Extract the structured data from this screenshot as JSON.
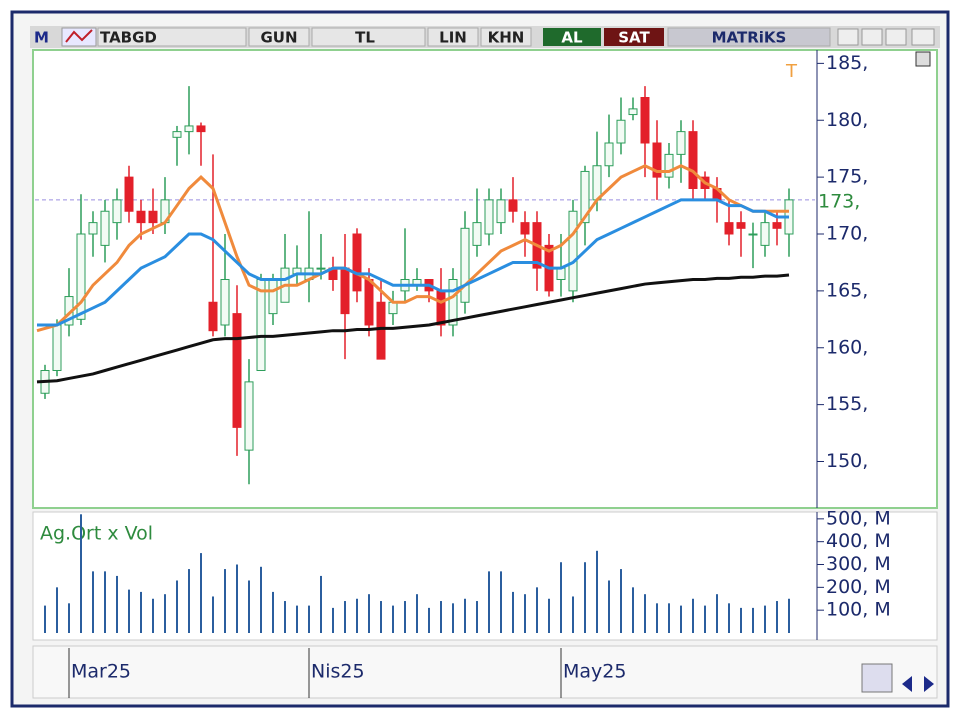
{
  "toolbar": {
    "logo": "M",
    "symbol": "TABGD",
    "period": "GUN",
    "currency": "TL",
    "scale": "LIN",
    "mode": "KHN",
    "buy": "AL",
    "sell": "SAT",
    "brand": "MATRiKS"
  },
  "chart_data": [
    {
      "type": "candlestick",
      "corner_label": "T",
      "categories": [
        null,
        null,
        "Mar25",
        null,
        null,
        null,
        null,
        null,
        null,
        null,
        null,
        null,
        null,
        null,
        null,
        null,
        null,
        null,
        null,
        null,
        null,
        null,
        "Nis25",
        null,
        null,
        null,
        null,
        null,
        null,
        null,
        null,
        null,
        null,
        null,
        null,
        null,
        null,
        null,
        null,
        null,
        null,
        null,
        null,
        "May25",
        null,
        null,
        null,
        null,
        null,
        null,
        null,
        null,
        null,
        null,
        null,
        null,
        null,
        null,
        null,
        null,
        null,
        null,
        null
      ],
      "open": [
        156,
        158,
        162,
        162.5,
        170,
        169,
        171,
        175,
        172,
        172,
        171,
        178.5,
        179,
        179.5,
        164,
        162,
        163,
        151,
        158,
        163,
        164,
        166.5,
        166,
        167,
        167,
        167,
        170,
        166,
        164,
        163,
        165,
        165.5,
        166,
        165,
        162,
        164,
        169,
        170,
        171,
        173,
        171,
        171,
        169,
        166,
        165,
        171,
        173,
        176,
        178,
        180.5,
        182,
        178,
        175,
        177,
        179,
        175,
        174,
        171,
        171,
        170,
        169,
        171,
        170
      ],
      "high": [
        158.5,
        162.5,
        167,
        173.5,
        172,
        173,
        174,
        176,
        173,
        174,
        175,
        179.5,
        183,
        179.8,
        177,
        170,
        165.5,
        159,
        166.5,
        166.5,
        170,
        169,
        172,
        170,
        168,
        170,
        170.5,
        167,
        166,
        165,
        170.5,
        167,
        166,
        167,
        167,
        172,
        174,
        174,
        174,
        175,
        172,
        172,
        170,
        170,
        173,
        176,
        179,
        180.5,
        182,
        182,
        183,
        180,
        178,
        180,
        180,
        175.5,
        175,
        173,
        172,
        171,
        172,
        172,
        174
      ],
      "low": [
        155.5,
        157.5,
        161,
        162,
        168,
        167.5,
        169.5,
        171,
        169.5,
        170,
        170,
        176,
        177,
        176,
        161,
        161,
        150.5,
        148,
        158,
        162,
        164,
        165.5,
        164,
        166,
        165,
        159,
        164,
        161,
        159,
        162,
        164,
        165,
        164,
        161,
        161,
        163,
        168,
        169,
        170,
        171,
        168,
        165,
        164.5,
        164.5,
        164,
        169,
        172,
        175,
        177,
        180,
        175,
        173,
        174,
        174.5,
        173,
        173,
        171,
        169,
        168,
        167,
        168,
        169,
        168
      ],
      "close": [
        158,
        162,
        164.5,
        170,
        171,
        172,
        173,
        172,
        171,
        171,
        173,
        179,
        179.5,
        179,
        161.5,
        166,
        153,
        157,
        166,
        166,
        167,
        167,
        167,
        167,
        166,
        163,
        165,
        162,
        159,
        164,
        166,
        166,
        165,
        162,
        166,
        170.5,
        171,
        173,
        173,
        172,
        170,
        167,
        165,
        167,
        172,
        175.5,
        176,
        178,
        180,
        181,
        178,
        175,
        177,
        179,
        174,
        174,
        173,
        170,
        170.5,
        170,
        171,
        170.5,
        173
      ],
      "up_color": "#2e9e5b",
      "down_color": "#e3202a",
      "lines": [
        {
          "color": "#f08a3c",
          "values": [
            161.5,
            162,
            163,
            164,
            165.5,
            166.5,
            167.5,
            169,
            170,
            170.5,
            171,
            172.5,
            174,
            175,
            174,
            171,
            168,
            165.5,
            165,
            165,
            165.5,
            165.5,
            166,
            166.5,
            167,
            167,
            166.5,
            166,
            165,
            164,
            164,
            164.5,
            164.5,
            164,
            164.5,
            165.5,
            166.5,
            167.5,
            168.5,
            169,
            169.5,
            169,
            168.5,
            169,
            170,
            171.5,
            173,
            174,
            175,
            175.5,
            176,
            175.5,
            175.5,
            176,
            175.5,
            174.5,
            174,
            173,
            172.5,
            172,
            172,
            172,
            172
          ]
        },
        {
          "color": "#2a8ee0",
          "values": [
            162,
            162,
            162.5,
            163,
            163.5,
            164,
            165,
            166,
            167,
            167.5,
            168,
            169,
            170,
            170,
            169.5,
            168.5,
            167.5,
            166.5,
            166,
            166,
            166,
            166.5,
            166.5,
            166.5,
            167,
            167,
            166.5,
            166.5,
            166,
            165.5,
            165.5,
            165.5,
            165.5,
            165,
            165,
            165.5,
            166,
            166.5,
            167,
            167.5,
            167.5,
            167.5,
            167,
            167,
            167.5,
            168.5,
            169.5,
            170,
            170.5,
            171,
            171.5,
            172,
            172.5,
            173,
            173,
            173,
            173,
            172.5,
            172.5,
            172,
            172,
            171.5,
            171.5
          ]
        },
        {
          "color": "#111111",
          "values": [
            157,
            157.1,
            157.3,
            157.5,
            157.7,
            158,
            158.3,
            158.6,
            158.9,
            159.2,
            159.5,
            159.8,
            160.1,
            160.4,
            160.7,
            160.8,
            160.8,
            160.9,
            161,
            161,
            161.1,
            161.2,
            161.3,
            161.4,
            161.5,
            161.5,
            161.6,
            161.6,
            161.7,
            161.7,
            161.8,
            161.9,
            162,
            162.2,
            162.4,
            162.6,
            162.8,
            163,
            163.2,
            163.4,
            163.6,
            163.8,
            164,
            164.2,
            164.4,
            164.6,
            164.8,
            165,
            165.2,
            165.4,
            165.6,
            165.7,
            165.8,
            165.9,
            166,
            166,
            166.1,
            166.1,
            166.2,
            166.2,
            166.3,
            166.3,
            166.4
          ]
        }
      ],
      "last_price": {
        "value": 173,
        "label": "173,"
      },
      "ylim": [
        146,
        186
      ],
      "yticks": [
        {
          "value": 150,
          "label": "150,"
        },
        {
          "value": 155,
          "label": "155,"
        },
        {
          "value": 160,
          "label": "160,"
        },
        {
          "value": 165,
          "label": "165,"
        },
        {
          "value": 170,
          "label": "170,"
        },
        {
          "value": 175,
          "label": "175,"
        },
        {
          "value": 180,
          "label": "180,"
        },
        {
          "value": 185,
          "label": "185,"
        }
      ]
    },
    {
      "type": "bar",
      "title": "Ag.Ort x Vol",
      "color": "#2b5e9e",
      "values": [
        120,
        200,
        130,
        520,
        270,
        270,
        250,
        190,
        180,
        150,
        170,
        230,
        280,
        350,
        160,
        280,
        300,
        230,
        290,
        180,
        140,
        120,
        120,
        250,
        110,
        140,
        150,
        170,
        140,
        120,
        140,
        170,
        110,
        140,
        130,
        150,
        140,
        270,
        270,
        180,
        170,
        200,
        150,
        310,
        160,
        310,
        360,
        230,
        280,
        200,
        170,
        130,
        130,
        120,
        150,
        120,
        170,
        130,
        110,
        110,
        120,
        140,
        150
      ],
      "ylim": [
        0,
        530
      ],
      "yticks": [
        {
          "value": 100,
          "label": "100, M"
        },
        {
          "value": 200,
          "label": "200, M"
        },
        {
          "value": 300,
          "label": "300, M"
        },
        {
          "value": 400,
          "label": "400, M"
        },
        {
          "value": 500,
          "label": "500, M"
        }
      ]
    }
  ]
}
